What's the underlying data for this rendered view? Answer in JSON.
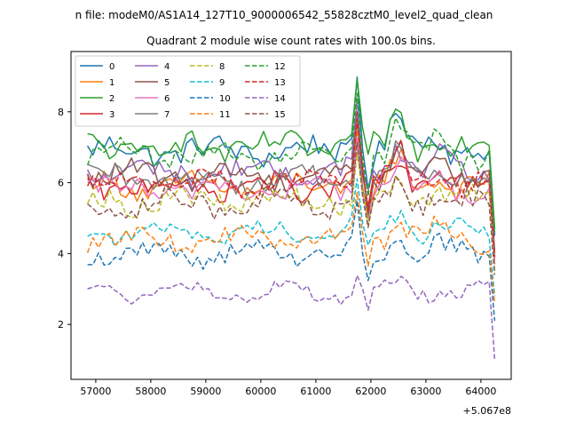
{
  "chart_data": {
    "type": "line",
    "suptitle": "n file: modeM0/AS1A14_127T10_9000006542_55828cztM0_level2_quad_clean",
    "title": "Quadrant 2 module wise count rates with 100.0s bins.",
    "xlabel": "",
    "ylabel": "",
    "offset_text": "+5.067e8",
    "xlim": [
      56550,
      64550
    ],
    "ylim": [
      0.45,
      9.7
    ],
    "xticks": [
      57000,
      58000,
      59000,
      60000,
      61000,
      62000,
      63000,
      64000
    ],
    "yticks": [
      2,
      4,
      6,
      8
    ],
    "x_start": 56850,
    "x_step": 100,
    "x_end": 64250,
    "grid": false,
    "legend_position": "top-left",
    "series": [
      {
        "name": "0",
        "color": "#1f77b4",
        "dashed": false,
        "level": 6.9,
        "noise": 0.32,
        "peak": 2.3,
        "drop": 2.4
      },
      {
        "name": "1",
        "color": "#ff7f0e",
        "dashed": false,
        "level": 5.9,
        "noise": 0.28,
        "peak": 1.6,
        "drop": 2.2
      },
      {
        "name": "2",
        "color": "#2ca02c",
        "dashed": false,
        "level": 7.0,
        "noise": 0.34,
        "peak": 2.1,
        "drop": 2.3
      },
      {
        "name": "3",
        "color": "#d62728",
        "dashed": false,
        "level": 5.9,
        "noise": 0.3,
        "peak": 1.9,
        "drop": 2.2
      },
      {
        "name": "4",
        "color": "#9467bd",
        "dashed": false,
        "level": 6.3,
        "noise": 0.3,
        "peak": 1.7,
        "drop": 2.2
      },
      {
        "name": "5",
        "color": "#8c564b",
        "dashed": false,
        "level": 6.2,
        "noise": 0.3,
        "peak": 1.8,
        "drop": 2.2
      },
      {
        "name": "6",
        "color": "#e377c2",
        "dashed": false,
        "level": 5.8,
        "noise": 0.3,
        "peak": 1.6,
        "drop": 2.1
      },
      {
        "name": "7",
        "color": "#7f7f7f",
        "dashed": false,
        "level": 6.1,
        "noise": 0.3,
        "peak": 1.7,
        "drop": 2.2
      },
      {
        "name": "8",
        "color": "#bcbd22",
        "dashed": true,
        "level": 5.5,
        "noise": 0.3,
        "peak": 1.5,
        "drop": 2.0
      },
      {
        "name": "9",
        "color": "#17becf",
        "dashed": true,
        "level": 4.6,
        "noise": 0.22,
        "peak": 1.3,
        "drop": 1.8
      },
      {
        "name": "10",
        "color": "#1f77b4",
        "dashed": true,
        "level": 4.0,
        "noise": 0.25,
        "peak": 1.1,
        "drop": 1.9
      },
      {
        "name": "11",
        "color": "#ff7f0e",
        "dashed": true,
        "level": 4.4,
        "noise": 0.24,
        "peak": 1.4,
        "drop": 1.8
      },
      {
        "name": "12",
        "color": "#2ca02c",
        "dashed": true,
        "level": 6.8,
        "noise": 0.3,
        "peak": 1.8,
        "drop": 2.2
      },
      {
        "name": "13",
        "color": "#d62728",
        "dashed": true,
        "level": 6.0,
        "noise": 0.3,
        "peak": 1.7,
        "drop": 2.1
      },
      {
        "name": "14",
        "color": "#9467bd",
        "dashed": true,
        "level": 2.9,
        "noise": 0.18,
        "peak": 0.6,
        "drop": 1.9
      },
      {
        "name": "15",
        "color": "#8c564b",
        "dashed": true,
        "level": 5.4,
        "noise": 0.3,
        "peak": 1.5,
        "drop": 2.0
      }
    ]
  }
}
